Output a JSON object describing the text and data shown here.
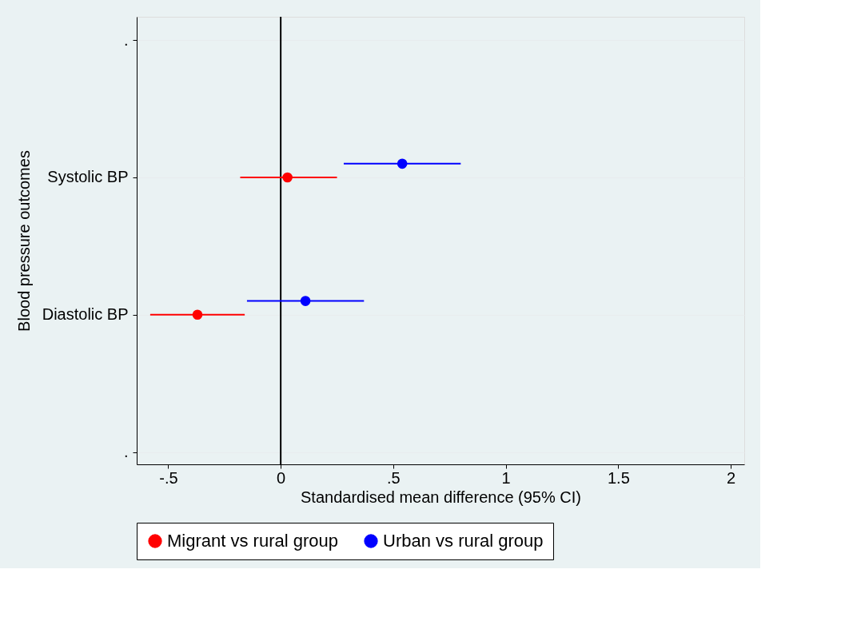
{
  "chart_data": {
    "type": "scatter",
    "orientation": "horizontal",
    "xlabel": "Standardised mean difference (95% CI)",
    "ylabel": "Blood pressure outcomes",
    "categories": [
      ".",
      "Systolic BP",
      "Diastolic BP",
      "."
    ],
    "series": [
      {
        "name": "Migrant vs rural group",
        "color": "#ff0000",
        "values": [
          null,
          0.03,
          -0.37,
          null
        ],
        "errors": [
          null,
          [
            -0.18,
            0.25
          ],
          [
            -0.58,
            -0.16
          ],
          null
        ]
      },
      {
        "name": "Urban vs rural group",
        "color": "#0000ff",
        "values": [
          null,
          0.54,
          0.11,
          null
        ],
        "errors": [
          null,
          [
            0.28,
            0.8
          ],
          [
            -0.15,
            0.37
          ],
          null
        ]
      }
    ],
    "xlim": [
      -0.64,
      2.06
    ],
    "xticks": [
      {
        "value": -0.5,
        "label": "-.5"
      },
      {
        "value": 0,
        "label": "0"
      },
      {
        "value": 0.5,
        "label": ".5"
      },
      {
        "value": 1,
        "label": "1"
      },
      1.5,
      {
        "value": 2,
        "label": "2"
      }
    ],
    "ref_lines": [
      {
        "axis": "x",
        "value": 0,
        "color": "#000000"
      }
    ],
    "grid": "y",
    "legend": "bottom",
    "marker": "circle"
  }
}
